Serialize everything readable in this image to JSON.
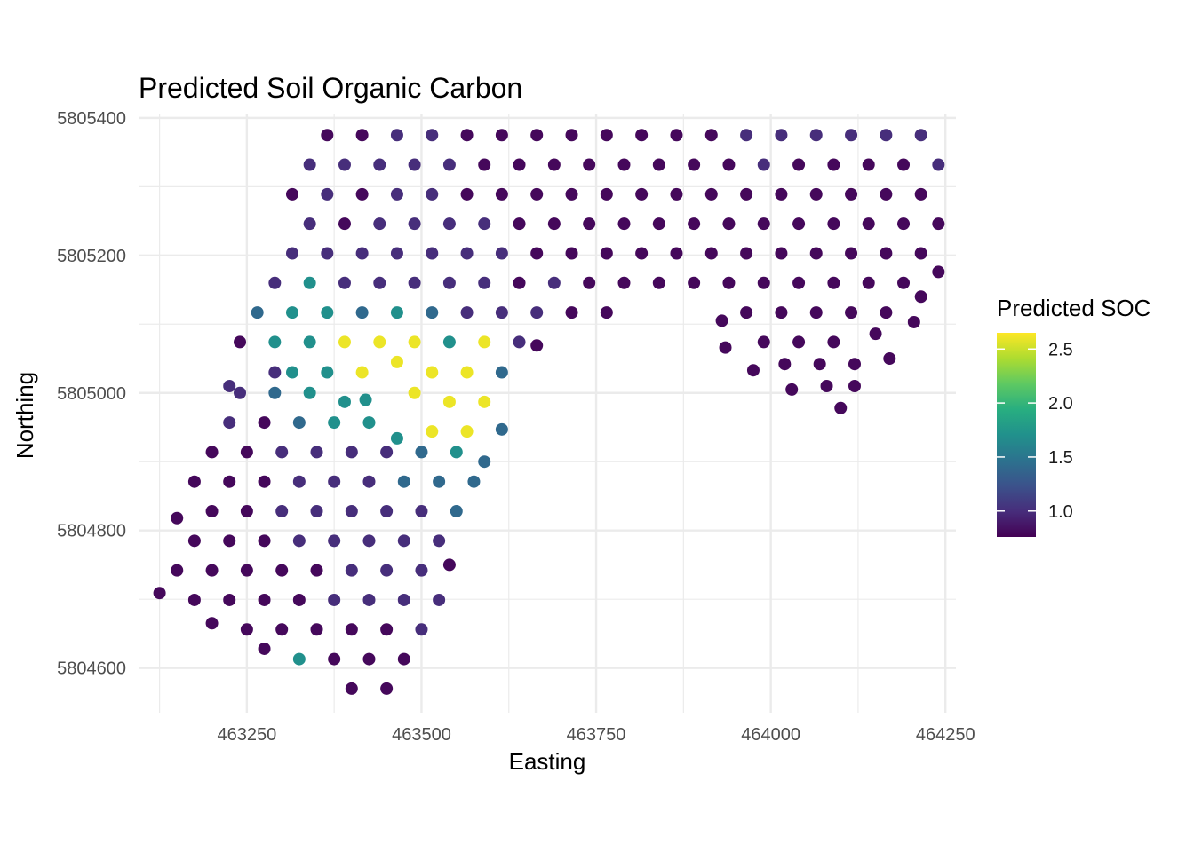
{
  "chart_data": {
    "type": "scatter",
    "title": "Predicted Soil Organic Carbon",
    "xlabel": "Easting",
    "ylabel": "Northing",
    "xlim": [
      463095,
      464265
    ],
    "ylim": [
      5804535,
      5805405
    ],
    "x_ticks": [
      463250,
      463500,
      463750,
      464000,
      464250
    ],
    "x_tick_labels": [
      "463250",
      "463500",
      "463750",
      "464000",
      "464250"
    ],
    "y_ticks": [
      5804600,
      5804800,
      5805000,
      5805200,
      5805400
    ],
    "y_tick_labels": [
      "5804600",
      "5804800",
      "5805000",
      "5805200",
      "5805400"
    ],
    "grid": true,
    "legend": {
      "title": "Predicted SOC",
      "placement": "right",
      "range": [
        0.76,
        2.65
      ],
      "ticks": [
        1.0,
        1.5,
        2.0,
        2.5
      ],
      "tick_labels": [
        "1.0",
        "1.5",
        "2.0",
        "2.5"
      ],
      "colormap": "viridis"
    },
    "points_columns": [
      "x",
      "y",
      "soc"
    ],
    "points": [
      [
        463365,
        5805375,
        0.8
      ],
      [
        463415,
        5805375,
        0.8
      ],
      [
        463465,
        5805375,
        1.0
      ],
      [
        463515,
        5805375,
        1.0
      ],
      [
        463565,
        5805375,
        0.8
      ],
      [
        463615,
        5805375,
        0.8
      ],
      [
        463665,
        5805375,
        0.8
      ],
      [
        463715,
        5805375,
        0.8
      ],
      [
        463765,
        5805375,
        0.8
      ],
      [
        463815,
        5805375,
        0.8
      ],
      [
        463865,
        5805375,
        0.8
      ],
      [
        463915,
        5805375,
        0.8
      ],
      [
        463965,
        5805375,
        1.0
      ],
      [
        464015,
        5805375,
        1.0
      ],
      [
        464065,
        5805375,
        1.0
      ],
      [
        464115,
        5805375,
        1.0
      ],
      [
        464165,
        5805375,
        1.0
      ],
      [
        464215,
        5805375,
        1.0
      ],
      [
        463340,
        5805332,
        1.0
      ],
      [
        463390,
        5805332,
        1.0
      ],
      [
        463440,
        5805332,
        1.0
      ],
      [
        463490,
        5805332,
        1.0
      ],
      [
        463540,
        5805332,
        1.0
      ],
      [
        463590,
        5805332,
        0.8
      ],
      [
        463640,
        5805332,
        0.8
      ],
      [
        463690,
        5805332,
        0.8
      ],
      [
        463740,
        5805332,
        0.8
      ],
      [
        463790,
        5805332,
        0.8
      ],
      [
        463840,
        5805332,
        0.8
      ],
      [
        463890,
        5805332,
        0.8
      ],
      [
        463940,
        5805332,
        0.8
      ],
      [
        463990,
        5805332,
        1.0
      ],
      [
        464040,
        5805332,
        0.8
      ],
      [
        464090,
        5805332,
        0.8
      ],
      [
        464140,
        5805332,
        0.8
      ],
      [
        464190,
        5805332,
        0.8
      ],
      [
        464240,
        5805332,
        1.0
      ],
      [
        463315,
        5805289,
        0.8
      ],
      [
        463365,
        5805289,
        1.0
      ],
      [
        463415,
        5805289,
        0.8
      ],
      [
        463465,
        5805289,
        1.0
      ],
      [
        463515,
        5805289,
        1.0
      ],
      [
        463565,
        5805289,
        0.8
      ],
      [
        463615,
        5805289,
        0.8
      ],
      [
        463665,
        5805289,
        0.8
      ],
      [
        463715,
        5805289,
        0.8
      ],
      [
        463765,
        5805289,
        0.8
      ],
      [
        463815,
        5805289,
        0.8
      ],
      [
        463865,
        5805289,
        0.8
      ],
      [
        463915,
        5805289,
        0.8
      ],
      [
        463965,
        5805289,
        0.8
      ],
      [
        464015,
        5805289,
        0.8
      ],
      [
        464065,
        5805289,
        0.8
      ],
      [
        464115,
        5805289,
        0.8
      ],
      [
        464165,
        5805289,
        0.8
      ],
      [
        464215,
        5805289,
        0.8
      ],
      [
        463340,
        5805246,
        1.0
      ],
      [
        463390,
        5805246,
        0.8
      ],
      [
        463440,
        5805246,
        1.0
      ],
      [
        463490,
        5805246,
        1.0
      ],
      [
        463540,
        5805246,
        1.0
      ],
      [
        463590,
        5805246,
        1.0
      ],
      [
        463640,
        5805246,
        0.8
      ],
      [
        463690,
        5805246,
        0.8
      ],
      [
        463740,
        5805246,
        0.8
      ],
      [
        463790,
        5805246,
        0.8
      ],
      [
        463840,
        5805246,
        0.8
      ],
      [
        463890,
        5805246,
        0.8
      ],
      [
        463940,
        5805246,
        0.8
      ],
      [
        463990,
        5805246,
        0.8
      ],
      [
        464040,
        5805246,
        0.8
      ],
      [
        464090,
        5805246,
        0.8
      ],
      [
        464140,
        5805246,
        0.8
      ],
      [
        464190,
        5805246,
        0.8
      ],
      [
        464240,
        5805246,
        0.8
      ],
      [
        463315,
        5805203,
        1.0
      ],
      [
        463365,
        5805203,
        1.0
      ],
      [
        463415,
        5805203,
        1.0
      ],
      [
        463465,
        5805203,
        1.0
      ],
      [
        463515,
        5805203,
        1.0
      ],
      [
        463565,
        5805203,
        1.0
      ],
      [
        463615,
        5805203,
        1.0
      ],
      [
        463665,
        5805203,
        0.8
      ],
      [
        463715,
        5805203,
        0.8
      ],
      [
        463765,
        5805203,
        0.8
      ],
      [
        463815,
        5805203,
        0.8
      ],
      [
        463865,
        5805203,
        0.8
      ],
      [
        463915,
        5805203,
        0.8
      ],
      [
        463965,
        5805203,
        0.8
      ],
      [
        464015,
        5805203,
        0.8
      ],
      [
        464065,
        5805203,
        0.8
      ],
      [
        464115,
        5805203,
        0.8
      ],
      [
        464165,
        5805203,
        0.8
      ],
      [
        464215,
        5805203,
        0.8
      ],
      [
        464240,
        5805176,
        0.8
      ],
      [
        463290,
        5805160,
        1.0
      ],
      [
        463340,
        5805160,
        1.7
      ],
      [
        463390,
        5805160,
        1.0
      ],
      [
        463440,
        5805160,
        1.0
      ],
      [
        463490,
        5805160,
        1.0
      ],
      [
        463540,
        5805160,
        1.0
      ],
      [
        463590,
        5805160,
        1.0
      ],
      [
        463640,
        5805160,
        0.8
      ],
      [
        463690,
        5805160,
        1.0
      ],
      [
        463740,
        5805160,
        0.8
      ],
      [
        463790,
        5805160,
        0.8
      ],
      [
        463840,
        5805160,
        0.8
      ],
      [
        463890,
        5805160,
        0.8
      ],
      [
        463940,
        5805160,
        0.8
      ],
      [
        463990,
        5805160,
        0.8
      ],
      [
        464040,
        5805160,
        0.8
      ],
      [
        464090,
        5805160,
        0.8
      ],
      [
        464140,
        5805160,
        0.8
      ],
      [
        464190,
        5805160,
        0.8
      ],
      [
        464215,
        5805140,
        0.8
      ],
      [
        463265,
        5805117,
        1.4
      ],
      [
        463315,
        5805117,
        1.7
      ],
      [
        463365,
        5805117,
        1.7
      ],
      [
        463415,
        5805117,
        1.4
      ],
      [
        463465,
        5805117,
        1.7
      ],
      [
        463515,
        5805117,
        1.4
      ],
      [
        463565,
        5805117,
        1.0
      ],
      [
        463615,
        5805117,
        1.0
      ],
      [
        463665,
        5805117,
        1.0
      ],
      [
        463715,
        5805117,
        0.8
      ],
      [
        463765,
        5805117,
        0.8
      ],
      [
        463965,
        5805117,
        0.8
      ],
      [
        464015,
        5805117,
        0.8
      ],
      [
        464065,
        5805117,
        0.8
      ],
      [
        464115,
        5805117,
        0.8
      ],
      [
        464165,
        5805117,
        0.8
      ],
      [
        463930,
        5805105,
        0.8
      ],
      [
        464205,
        5805103,
        0.8
      ],
      [
        463240,
        5805074,
        0.8
      ],
      [
        463290,
        5805074,
        1.7
      ],
      [
        463340,
        5805074,
        1.7
      ],
      [
        463390,
        5805074,
        2.6
      ],
      [
        463440,
        5805074,
        2.6
      ],
      [
        463490,
        5805074,
        2.6
      ],
      [
        463540,
        5805074,
        1.7
      ],
      [
        463590,
        5805074,
        2.6
      ],
      [
        463640,
        5805074,
        1.0
      ],
      [
        463665,
        5805069,
        0.8
      ],
      [
        463990,
        5805074,
        0.8
      ],
      [
        464040,
        5805074,
        0.8
      ],
      [
        464090,
        5805074,
        0.8
      ],
      [
        464150,
        5805086,
        0.8
      ],
      [
        463935,
        5805066,
        0.8
      ],
      [
        463290,
        5805030,
        1.0
      ],
      [
        463315,
        5805030,
        1.7
      ],
      [
        463365,
        5805030,
        1.7
      ],
      [
        463415,
        5805030,
        2.6
      ],
      [
        463465,
        5805045,
        2.6
      ],
      [
        463515,
        5805030,
        2.6
      ],
      [
        463565,
        5805030,
        2.6
      ],
      [
        463615,
        5805030,
        1.4
      ],
      [
        463975,
        5805033,
        0.8
      ],
      [
        464020,
        5805042,
        0.8
      ],
      [
        464070,
        5805042,
        0.8
      ],
      [
        464120,
        5805042,
        0.8
      ],
      [
        464170,
        5805050,
        0.8
      ],
      [
        463225,
        5805010,
        1.0
      ],
      [
        463240,
        5805000,
        1.0
      ],
      [
        463290,
        5805000,
        1.4
      ],
      [
        463340,
        5805000,
        1.7
      ],
      [
        463390,
        5804987,
        1.7
      ],
      [
        463420,
        5804990,
        1.7
      ],
      [
        463490,
        5805000,
        2.6
      ],
      [
        463540,
        5804987,
        2.6
      ],
      [
        463590,
        5804987,
        2.6
      ],
      [
        464030,
        5805005,
        0.8
      ],
      [
        464080,
        5805010,
        0.8
      ],
      [
        464120,
        5805010,
        0.8
      ],
      [
        464100,
        5804978,
        0.8
      ],
      [
        463225,
        5804957,
        1.0
      ],
      [
        463275,
        5804957,
        0.8
      ],
      [
        463325,
        5804957,
        1.4
      ],
      [
        463375,
        5804957,
        1.7
      ],
      [
        463425,
        5804957,
        1.7
      ],
      [
        463465,
        5804934,
        1.7
      ],
      [
        463515,
        5804944,
        2.6
      ],
      [
        463565,
        5804944,
        2.6
      ],
      [
        463615,
        5804947,
        1.4
      ],
      [
        463200,
        5804914,
        0.8
      ],
      [
        463250,
        5804914,
        0.8
      ],
      [
        463300,
        5804914,
        1.0
      ],
      [
        463350,
        5804914,
        1.0
      ],
      [
        463400,
        5804914,
        1.0
      ],
      [
        463450,
        5804914,
        1.0
      ],
      [
        463500,
        5804914,
        1.4
      ],
      [
        463550,
        5804914,
        1.7
      ],
      [
        463590,
        5804900,
        1.4
      ],
      [
        463175,
        5804871,
        0.8
      ],
      [
        463225,
        5804871,
        0.8
      ],
      [
        463275,
        5804871,
        0.8
      ],
      [
        463325,
        5804871,
        1.0
      ],
      [
        463375,
        5804871,
        1.0
      ],
      [
        463425,
        5804871,
        1.0
      ],
      [
        463475,
        5804871,
        1.4
      ],
      [
        463525,
        5804871,
        1.4
      ],
      [
        463575,
        5804871,
        1.4
      ],
      [
        463150,
        5804818,
        0.8
      ],
      [
        463200,
        5804828,
        0.8
      ],
      [
        463250,
        5804828,
        0.8
      ],
      [
        463300,
        5804828,
        1.0
      ],
      [
        463350,
        5804828,
        1.0
      ],
      [
        463400,
        5804828,
        1.0
      ],
      [
        463450,
        5804828,
        1.0
      ],
      [
        463500,
        5804828,
        1.0
      ],
      [
        463550,
        5804828,
        1.4
      ],
      [
        463175,
        5804785,
        0.8
      ],
      [
        463225,
        5804785,
        0.8
      ],
      [
        463275,
        5804785,
        0.8
      ],
      [
        463325,
        5804785,
        1.0
      ],
      [
        463375,
        5804785,
        1.0
      ],
      [
        463425,
        5804785,
        1.0
      ],
      [
        463475,
        5804785,
        1.0
      ],
      [
        463525,
        5804785,
        1.0
      ],
      [
        463150,
        5804742,
        0.8
      ],
      [
        463200,
        5804742,
        0.8
      ],
      [
        463250,
        5804742,
        0.8
      ],
      [
        463300,
        5804742,
        0.8
      ],
      [
        463350,
        5804742,
        0.8
      ],
      [
        463400,
        5804742,
        1.0
      ],
      [
        463450,
        5804742,
        1.0
      ],
      [
        463500,
        5804742,
        1.0
      ],
      [
        463540,
        5804750,
        0.8
      ],
      [
        463125,
        5804709,
        0.8
      ],
      [
        463175,
        5804699,
        0.8
      ],
      [
        463225,
        5804699,
        0.8
      ],
      [
        463275,
        5804699,
        0.8
      ],
      [
        463325,
        5804699,
        0.8
      ],
      [
        463375,
        5804699,
        1.0
      ],
      [
        463425,
        5804699,
        1.0
      ],
      [
        463475,
        5804699,
        1.0
      ],
      [
        463525,
        5804699,
        1.0
      ],
      [
        463200,
        5804665,
        0.8
      ],
      [
        463250,
        5804656,
        0.8
      ],
      [
        463300,
        5804656,
        0.8
      ],
      [
        463350,
        5804656,
        0.8
      ],
      [
        463400,
        5804656,
        0.8
      ],
      [
        463450,
        5804656,
        0.8
      ],
      [
        463500,
        5804656,
        1.0
      ],
      [
        463275,
        5804628,
        0.8
      ],
      [
        463325,
        5804613,
        1.7
      ],
      [
        463375,
        5804613,
        0.8
      ],
      [
        463425,
        5804613,
        0.8
      ],
      [
        463475,
        5804613,
        0.8
      ],
      [
        463400,
        5804570,
        0.8
      ],
      [
        463450,
        5804570,
        0.8
      ]
    ]
  }
}
